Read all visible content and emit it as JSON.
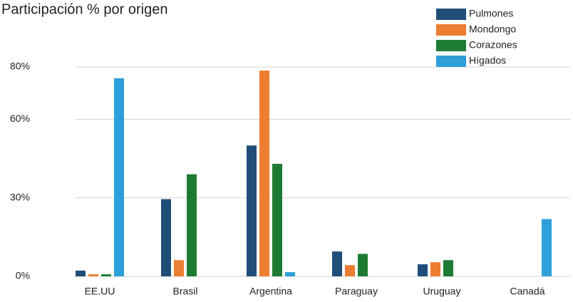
{
  "chart_data": {
    "type": "bar",
    "title": "Participación % por origen",
    "categories": [
      "EE.UU",
      "Brasil",
      "Argentina",
      "Paraguay",
      "Uruguay",
      "Canadá"
    ],
    "series": [
      {
        "name": "Pulmones",
        "color": "#1f4e79",
        "values": [
          2.2,
          29.5,
          50,
          9.5,
          4.6,
          null
        ]
      },
      {
        "name": "Mondongo",
        "color": "#ed7d31",
        "values": [
          0.8,
          6.2,
          78.6,
          4.3,
          5.4,
          null
        ]
      },
      {
        "name": "Corazones",
        "color": "#1e7b34",
        "values": [
          0.8,
          39,
          43,
          8.6,
          6.2,
          null
        ]
      },
      {
        "name": "Hígados",
        "color": "#2e9fd8",
        "values": [
          75.7,
          null,
          1.6,
          null,
          null,
          21.9
        ]
      }
    ],
    "ylim": [
      0,
      80
    ],
    "yticks": [
      {
        "value": 0,
        "label": "0%"
      },
      {
        "value": 30,
        "label": "30%"
      },
      {
        "value": 60,
        "label": "60%"
      },
      {
        "value": 80,
        "label": "80%"
      }
    ],
    "grid": true,
    "legend": "top-right"
  }
}
